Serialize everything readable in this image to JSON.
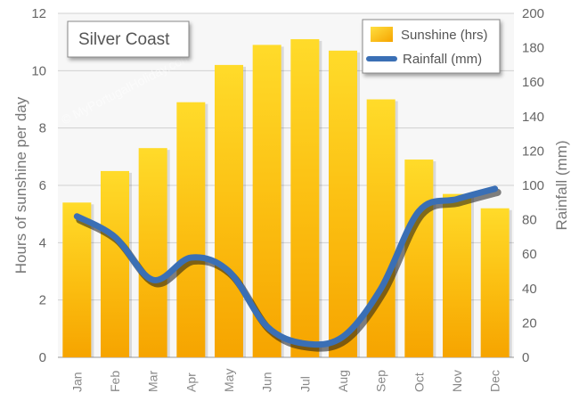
{
  "chart_data": {
    "type": "bar",
    "title": "Silver Coast",
    "categories": [
      "Jan",
      "Feb",
      "Mar",
      "Apr",
      "May",
      "Jun",
      "Jul",
      "Aug",
      "Sep",
      "Oct",
      "Nov",
      "Dec"
    ],
    "series": [
      {
        "name": "Sunshine (hrs)",
        "type": "bar",
        "axis": "left",
        "values": [
          5.4,
          6.5,
          7.3,
          8.9,
          10.2,
          10.9,
          11.1,
          10.7,
          9.0,
          6.9,
          5.7,
          5.2
        ]
      },
      {
        "name": "Rainfall (mm)",
        "type": "line",
        "axis": "right",
        "values": [
          82,
          70,
          45,
          58,
          50,
          18,
          8,
          12,
          40,
          85,
          92,
          98
        ]
      }
    ],
    "ylabel": "Hours of sunshine per day",
    "y2label": "Rainfall  (mm)",
    "ylim": [
      0,
      12
    ],
    "y2lim": [
      0,
      200
    ],
    "yticks": [
      0,
      2,
      4,
      6,
      8,
      10,
      12
    ],
    "y2ticks": [
      0,
      20,
      40,
      60,
      80,
      100,
      120,
      140,
      160,
      180,
      200
    ],
    "grid": true,
    "legend_position": "top-right",
    "watermark": "© MyPortugalHoliday.com",
    "colors": {
      "bar_light": "#ffdb2a",
      "bar_dark": "#f6a400",
      "line": "#3a6fb5",
      "grid": "#d0d0d0",
      "plot_bg": "#f7f7f7"
    }
  }
}
